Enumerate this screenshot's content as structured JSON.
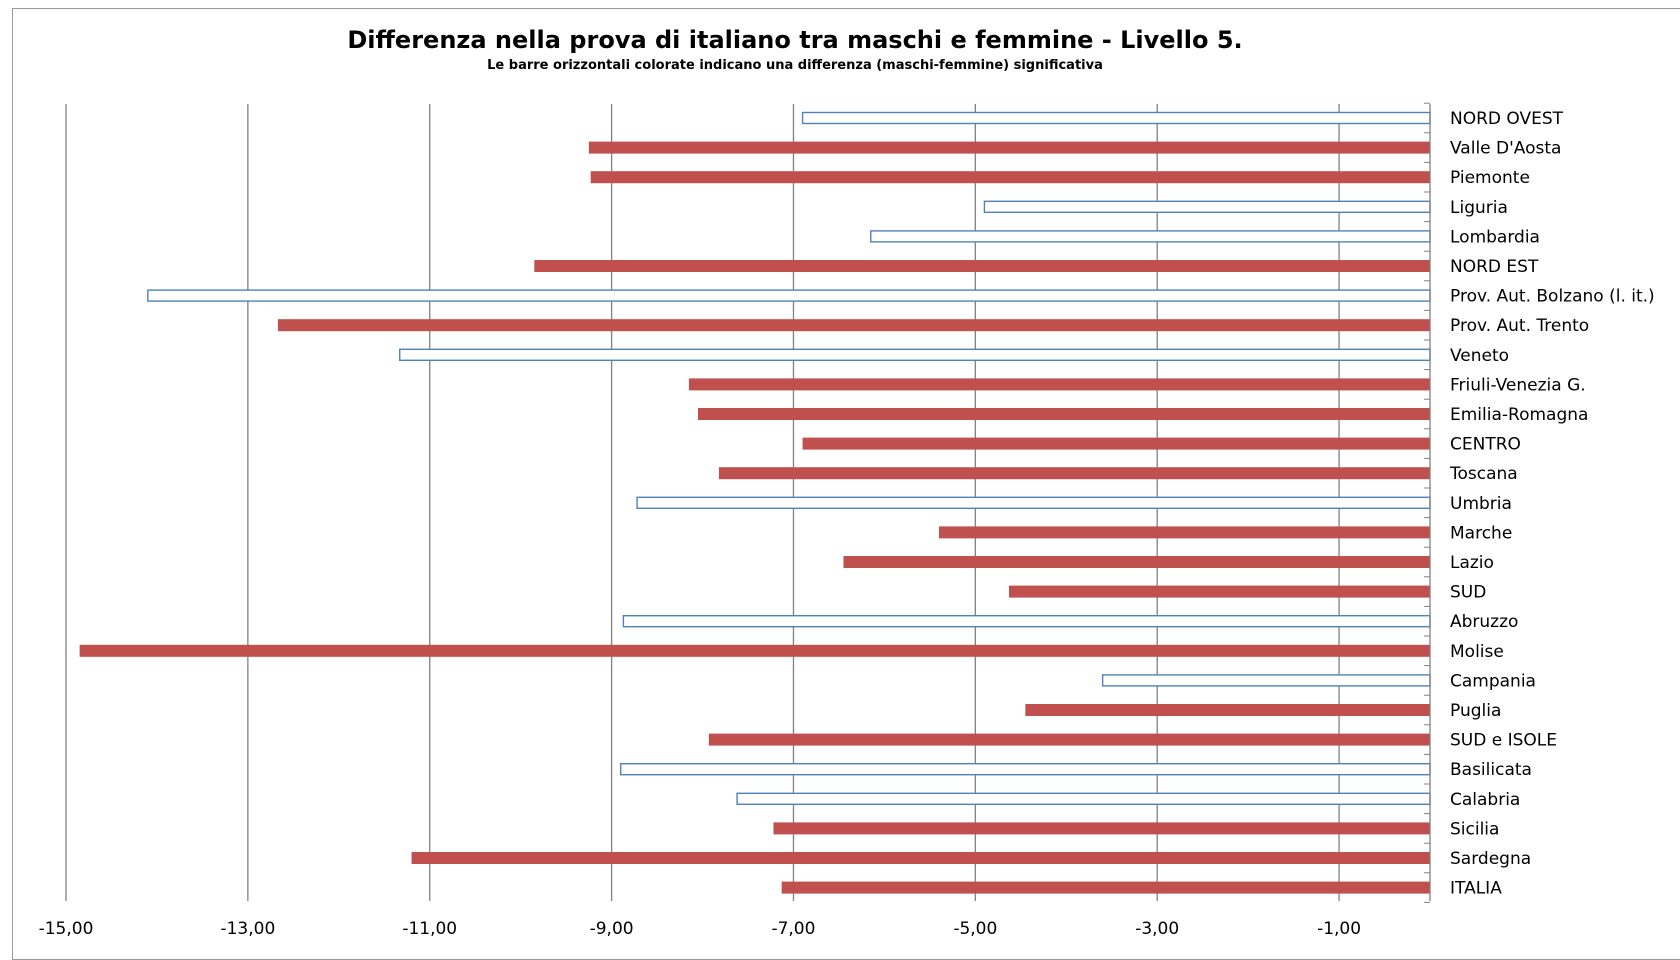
{
  "chart_data": {
    "type": "bar",
    "orientation": "horizontal",
    "title": "Differenza nella prova di italiano tra maschi e femmine - Livello 5.",
    "subtitle": "Le barre orizzontali colorate indicano una differenza (maschi-femmine) significativa",
    "xlim": [
      -15.0,
      0.0
    ],
    "x_ticks": [
      "-15,00",
      "-13,00",
      "-11,00",
      "-9,00",
      "-7,00",
      "-5,00",
      "-3,00",
      "-1,00"
    ],
    "x_tick_values": [
      -15,
      -13,
      -11,
      -9,
      -7,
      -5,
      -3,
      -1
    ],
    "grid": "vertical",
    "categories": [
      "NORD OVEST",
      "Valle D'Aosta",
      "Piemonte",
      "Liguria",
      "Lombardia",
      "NORD EST",
      "Prov. Aut. Bolzano (l. it.)",
      "Prov. Aut. Trento",
      "Veneto",
      "Friuli-Venezia G.",
      "Emilia-Romagna",
      "CENTRO",
      "Toscana",
      "Umbria",
      "Marche",
      "Lazio",
      "SUD",
      "Abruzzo",
      "Molise",
      "Campania",
      "Puglia",
      "SUD e ISOLE",
      "Basilicata",
      "Calabria",
      "Sicilia",
      "Sardegna",
      "ITALIA"
    ],
    "values": [
      -6.9,
      -9.25,
      -9.23,
      -4.9,
      -6.15,
      -9.85,
      -14.1,
      -12.67,
      -11.33,
      -8.15,
      -8.05,
      -6.9,
      -7.82,
      -8.72,
      -5.4,
      -6.45,
      -4.63,
      -8.87,
      -14.85,
      -3.6,
      -4.45,
      -7.93,
      -8.9,
      -7.62,
      -7.22,
      -11.2,
      -7.13
    ],
    "significant": [
      false,
      true,
      true,
      false,
      false,
      true,
      false,
      true,
      false,
      true,
      true,
      true,
      true,
      false,
      true,
      true,
      true,
      false,
      true,
      false,
      true,
      true,
      false,
      false,
      true,
      true,
      true
    ],
    "colors": {
      "significant_fill": "#c0504d",
      "outline": "#4f81bd",
      "grid": "#808080"
    }
  }
}
